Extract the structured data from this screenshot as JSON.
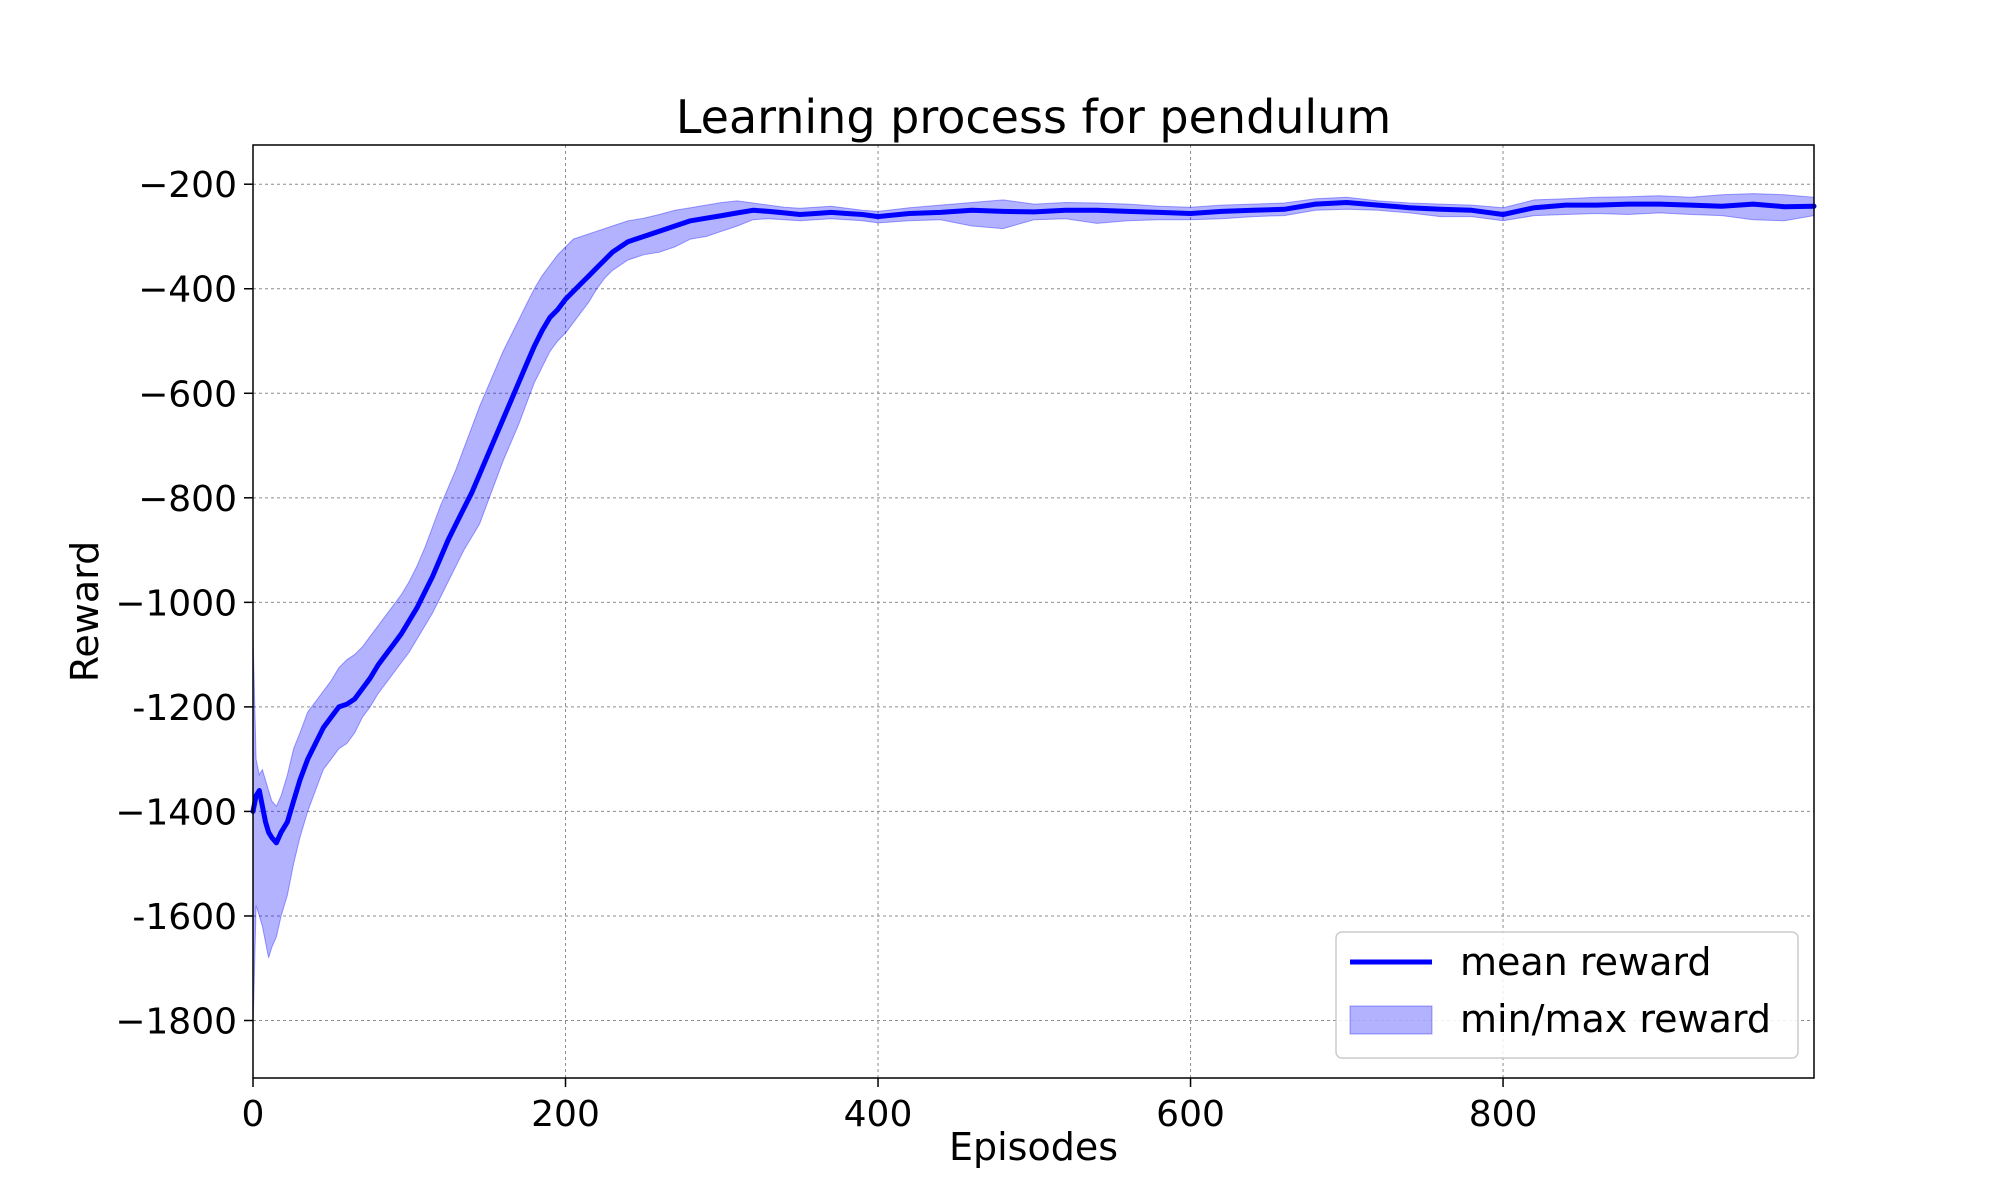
{
  "chart_data": {
    "type": "line",
    "title": "Learning process for pendulum",
    "xlabel": "Episodes",
    "ylabel": "Reward",
    "xlim": [
      0,
      999
    ],
    "ylim": [
      -1910,
      -125
    ],
    "xticks": [
      0,
      200,
      400,
      600,
      800
    ],
    "yticks": [
      -1800,
      -1600,
      -1400,
      -1200,
      -1000,
      -800,
      -600,
      -400,
      -200
    ],
    "ytick_labels": [
      "−1800",
      "-1600",
      "−1400",
      "-1200",
      "−1000",
      "−800",
      "−600",
      "−400",
      "−200"
    ],
    "grid": true,
    "legend_position": "lower-right",
    "colors": {
      "line": "#0000ff",
      "band": "#0000ff",
      "band_opacity": 0.3
    },
    "series": [
      {
        "name": "mean reward",
        "kind": "line",
        "x": [
          0,
          2,
          4,
          6,
          8,
          10,
          12,
          15,
          18,
          22,
          26,
          30,
          35,
          40,
          45,
          50,
          55,
          60,
          65,
          70,
          75,
          80,
          85,
          90,
          95,
          100,
          105,
          110,
          115,
          120,
          125,
          130,
          135,
          140,
          145,
          150,
          155,
          160,
          165,
          170,
          175,
          180,
          185,
          190,
          195,
          200,
          205,
          210,
          215,
          220,
          225,
          230,
          240,
          250,
          260,
          270,
          280,
          290,
          300,
          310,
          320,
          330,
          340,
          350,
          360,
          370,
          380,
          390,
          400,
          420,
          440,
          460,
          480,
          500,
          520,
          540,
          560,
          580,
          600,
          620,
          640,
          660,
          680,
          700,
          720,
          740,
          760,
          780,
          800,
          820,
          840,
          860,
          880,
          900,
          920,
          940,
          960,
          980,
          999
        ],
        "y": [
          -1400,
          -1370,
          -1360,
          -1390,
          -1420,
          -1440,
          -1450,
          -1460,
          -1440,
          -1420,
          -1380,
          -1340,
          -1300,
          -1270,
          -1240,
          -1220,
          -1200,
          -1195,
          -1185,
          -1165,
          -1145,
          -1120,
          -1100,
          -1080,
          -1060,
          -1035,
          -1010,
          -980,
          -950,
          -915,
          -880,
          -850,
          -820,
          -790,
          -755,
          -720,
          -685,
          -650,
          -615,
          -580,
          -545,
          -510,
          -480,
          -455,
          -440,
          -420,
          -405,
          -390,
          -375,
          -360,
          -345,
          -330,
          -310,
          -300,
          -290,
          -280,
          -270,
          -265,
          -260,
          -255,
          -250,
          -252,
          -255,
          -258,
          -256,
          -254,
          -256,
          -258,
          -262,
          -256,
          -254,
          -250,
          -252,
          -253,
          -250,
          -250,
          -252,
          -254,
          -256,
          -252,
          -250,
          -248,
          -238,
          -235,
          -240,
          -245,
          -248,
          -250,
          -258,
          -245,
          -240,
          -240,
          -238,
          -238,
          -240,
          -242,
          -238,
          -243,
          -242
        ]
      },
      {
        "name": "min/max reward",
        "kind": "band",
        "x": [
          0,
          2,
          4,
          6,
          8,
          10,
          12,
          15,
          18,
          22,
          26,
          30,
          35,
          40,
          45,
          50,
          55,
          60,
          65,
          70,
          75,
          80,
          85,
          90,
          95,
          100,
          105,
          110,
          115,
          120,
          125,
          130,
          135,
          140,
          145,
          150,
          155,
          160,
          165,
          170,
          175,
          180,
          185,
          190,
          195,
          200,
          205,
          210,
          215,
          220,
          225,
          230,
          240,
          250,
          260,
          270,
          280,
          290,
          300,
          310,
          320,
          330,
          340,
          350,
          360,
          370,
          380,
          390,
          400,
          420,
          440,
          460,
          480,
          500,
          520,
          540,
          560,
          580,
          600,
          620,
          640,
          660,
          680,
          700,
          720,
          740,
          760,
          780,
          800,
          820,
          840,
          860,
          880,
          900,
          920,
          940,
          960,
          980,
          999
        ],
        "upper": [
          -1060,
          -1300,
          -1330,
          -1320,
          -1340,
          -1360,
          -1380,
          -1390,
          -1370,
          -1330,
          -1280,
          -1250,
          -1210,
          -1190,
          -1170,
          -1150,
          -1125,
          -1110,
          -1100,
          -1085,
          -1065,
          -1045,
          -1025,
          -1005,
          -985,
          -960,
          -930,
          -895,
          -855,
          -815,
          -780,
          -745,
          -705,
          -665,
          -625,
          -590,
          -555,
          -520,
          -490,
          -460,
          -430,
          -400,
          -375,
          -355,
          -335,
          -320,
          -305,
          -300,
          -295,
          -290,
          -285,
          -280,
          -270,
          -265,
          -258,
          -250,
          -245,
          -240,
          -235,
          -232,
          -236,
          -240,
          -244,
          -246,
          -244,
          -242,
          -246,
          -250,
          -252,
          -245,
          -240,
          -235,
          -230,
          -238,
          -235,
          -236,
          -238,
          -242,
          -244,
          -240,
          -238,
          -236,
          -228,
          -225,
          -232,
          -236,
          -238,
          -240,
          -245,
          -230,
          -228,
          -225,
          -224,
          -222,
          -225,
          -220,
          -218,
          -220,
          -225
        ],
        "lower": [
          -1820,
          -1580,
          -1600,
          -1620,
          -1650,
          -1680,
          -1660,
          -1640,
          -1600,
          -1560,
          -1500,
          -1450,
          -1400,
          -1360,
          -1320,
          -1300,
          -1280,
          -1270,
          -1250,
          -1220,
          -1200,
          -1175,
          -1155,
          -1135,
          -1115,
          -1095,
          -1070,
          -1045,
          -1020,
          -990,
          -960,
          -930,
          -900,
          -875,
          -850,
          -810,
          -770,
          -730,
          -695,
          -660,
          -620,
          -580,
          -550,
          -520,
          -500,
          -485,
          -465,
          -445,
          -425,
          -400,
          -380,
          -365,
          -345,
          -335,
          -330,
          -320,
          -305,
          -300,
          -290,
          -280,
          -268,
          -266,
          -268,
          -270,
          -268,
          -266,
          -268,
          -270,
          -274,
          -270,
          -268,
          -280,
          -285,
          -268,
          -266,
          -275,
          -270,
          -268,
          -268,
          -266,
          -262,
          -260,
          -250,
          -248,
          -250,
          -255,
          -262,
          -262,
          -270,
          -260,
          -258,
          -256,
          -258,
          -255,
          -258,
          -260,
          -268,
          -270,
          -260
        ]
      }
    ]
  }
}
